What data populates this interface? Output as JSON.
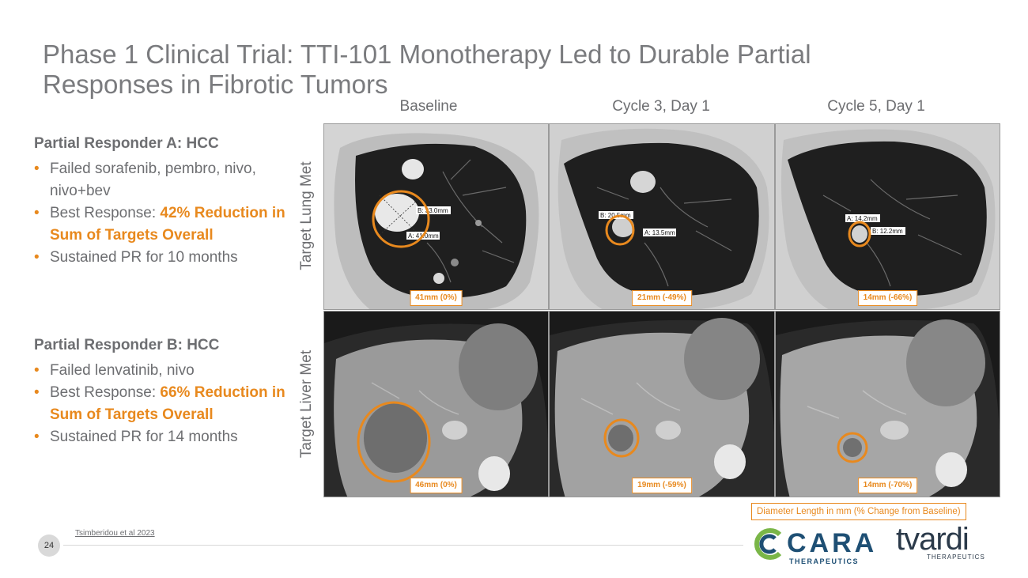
{
  "slide": {
    "title_line1": "Phase 1 Clinical Trial: TTI-101 Monotherapy Led to Durable Partial",
    "title_line2": "Responses in Fibrotic Tumors",
    "page_number": "24",
    "citation": "Tsimberidou et al 2023"
  },
  "columns": [
    "Baseline",
    "Cycle 3, Day 1",
    "Cycle 5, Day 1"
  ],
  "rows": [
    "Target Lung Met",
    "Target Liver Met"
  ],
  "responder_a": {
    "heading": "Partial Responder A: HCC",
    "bullet1": "Failed sorafenib, pembro, nivo, nivo+bev",
    "bullet2_prefix": "Best Response: ",
    "bullet2_highlight": "42% Reduction in Sum of Targets Overall",
    "bullet3": "Sustained PR for 10 months"
  },
  "responder_b": {
    "heading": "Partial Responder B: HCC",
    "bullet1": "Failed lenvatinib, nivo",
    "bullet2_prefix": "Best Response: ",
    "bullet2_highlight": "66% Reduction in Sum of Targets Overall",
    "bullet3": "Sustained PR for 14 months"
  },
  "measurements": {
    "lung": [
      "41mm (0%)",
      "21mm (-49%)",
      "14mm (-66%)"
    ],
    "liver": [
      "46mm (0%)",
      "19mm (-59%)",
      "14mm (-70%)"
    ]
  },
  "scan_annotations": {
    "lung_baseline": [
      "B: 33.0mm",
      "A: 41.0mm"
    ],
    "lung_c3": [
      "B: 20.5mm",
      "A: 13.5mm"
    ],
    "lung_c5": [
      "A: 14.2mm",
      "B: 12.2mm"
    ]
  },
  "note": "Diameter Length in mm (% Change from Baseline)",
  "logos": {
    "cara_word": "CARA",
    "cara_sub": "THERAPEUTICS",
    "tvardi_word": "tvardi",
    "tvardi_sub": "THERAPEUTICS"
  },
  "colors": {
    "accent": "#e8891e",
    "text": "#6d6e71",
    "cara_blue": "#1e4f74",
    "cara_green": "#7ab648"
  }
}
